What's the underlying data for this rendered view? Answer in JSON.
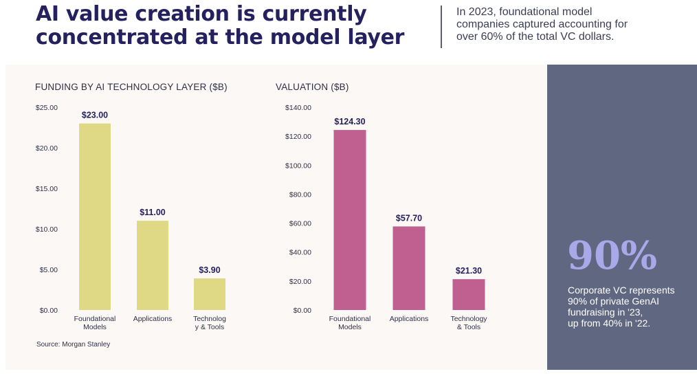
{
  "header": {
    "headline": "AI value creation is currently\nconcentrated at the model layer",
    "subhead": "In 2023, foundational model\ncompanies captured accounting for\nover 60% of the total VC dollars."
  },
  "source": "Source: Morgan Stanley",
  "callout": {
    "stat": "90%",
    "caption": "Corporate VC represents\n90% of private GenAI\nfundraising in '23,\nup from 40% in '22."
  },
  "colors": {
    "funding_bar": "#dfd884",
    "valuation_bar": "#c06090",
    "headline": "#24215e",
    "label": "#2d2f45"
  },
  "chart_data": [
    {
      "type": "bar",
      "title": "FUNDING BY AI TECHNOLOGY LAYER ($B)",
      "categories": [
        "Foundational\nModels",
        "Applications",
        "Technolog\ny & Tools"
      ],
      "values": [
        23.0,
        11.0,
        3.9
      ],
      "value_labels": [
        "$23.00",
        "$11.00",
        "$3.90"
      ],
      "yticks": [
        "$0.00",
        "$5.00",
        "$10.00",
        "$15.00",
        "$20.00",
        "$25.00"
      ],
      "ylim": [
        0,
        25
      ],
      "xlabel": "",
      "ylabel": "",
      "grid": false
    },
    {
      "type": "bar",
      "title": "VALUATION ($B)",
      "categories": [
        "Foundational\nModels",
        "Applications",
        "Technology\n& Tools"
      ],
      "values": [
        124.3,
        57.7,
        21.3
      ],
      "value_labels": [
        "$124.30",
        "$57.70",
        "$21.30"
      ],
      "yticks": [
        "$0.00",
        "$20.00",
        "$40.00",
        "$60.00",
        "$80.00",
        "$100.00",
        "$120.00",
        "$140.00"
      ],
      "ylim": [
        0,
        140
      ],
      "xlabel": "",
      "ylabel": "",
      "grid": false
    }
  ]
}
